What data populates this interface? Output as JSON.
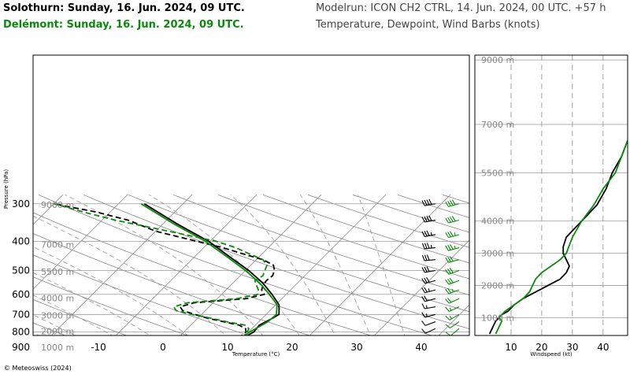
{
  "header": {
    "station_1": "Solothurn: Sunday, 16. Jun. 2024, 09 UTC.",
    "station_2": "Delémont: Sunday, 16. Jun. 2024, 09 UTC.",
    "model_run": "Modelrun: ICON CH2 CTRL, 14. Jun. 2024, 00 UTC. +57 h",
    "description": "Temperature, Dewpoint, Wind Barbs (knots)"
  },
  "footer": {
    "credit": "© Meteoswiss (2024)"
  },
  "colors": {
    "station_1": "#000000",
    "station_2": "#0a8a0a",
    "grid": "#888888",
    "isobar": "#999999"
  },
  "chart_data": [
    {
      "type": "line",
      "subtype": "skew-T log-p",
      "xlabel": "Temperature (°C)",
      "ylabel": "Pressure (hPa)",
      "x_ticks": [
        -10,
        0,
        10,
        20,
        30,
        40
      ],
      "y_ticks": [
        300,
        400,
        500,
        600,
        700,
        800,
        900
      ],
      "height_labels": [
        {
          "p": 302,
          "label": "9000 m"
        },
        {
          "p": 410,
          "label": "7000 m"
        },
        {
          "p": 505,
          "label": "5500 m"
        },
        {
          "p": 617,
          "label": "4000 m"
        },
        {
          "p": 705,
          "label": "3000 m"
        },
        {
          "p": 795,
          "label": "2000 m"
        },
        {
          "p": 900,
          "label": "1000 m"
        }
      ],
      "grid": true,
      "series": [
        {
          "name": "Solothurn temperature",
          "station": "station_1",
          "variable": "temperature",
          "style": "solid",
          "points": [
            [
              940,
              18.2
            ],
            [
              925,
              16
            ],
            [
              900,
              13
            ],
            [
              870,
              11
            ],
            [
              850,
              10.3
            ],
            [
              820,
              10.4
            ],
            [
              800,
              10.8
            ],
            [
              760,
              10.6
            ],
            [
              720,
              11.6
            ],
            [
              700,
              12
            ],
            [
              650,
              10.5
            ],
            [
              600,
              7.8
            ],
            [
              550,
              4.6
            ],
            [
              500,
              0.5
            ],
            [
              450,
              -4.6
            ],
            [
              400,
              -10.2
            ],
            [
              350,
              -17.8
            ],
            [
              300,
              -26
            ]
          ]
        },
        {
          "name": "Solothurn dewpoint",
          "station": "station_1",
          "variable": "dewpoint",
          "style": "dashed",
          "points": [
            [
              940,
              10.6
            ],
            [
              925,
              10.6
            ],
            [
              900,
              10
            ],
            [
              870,
              9.4
            ],
            [
              850,
              9.3
            ],
            [
              820,
              9.5
            ],
            [
              800,
              9.6
            ],
            [
              780,
              9
            ],
            [
              760,
              7.5
            ],
            [
              740,
              4.5
            ],
            [
              720,
              1.5
            ],
            [
              700,
              -1
            ],
            [
              680,
              -3.5
            ],
            [
              660,
              -4.5
            ],
            [
              640,
              -3
            ],
            [
              620,
              4.5
            ],
            [
              600,
              6.6
            ],
            [
              580,
              5.5
            ],
            [
              560,
              5
            ],
            [
              540,
              4.8
            ],
            [
              520,
              5
            ],
            [
              500,
              4.5
            ],
            [
              480,
              3.5
            ],
            [
              460,
              1
            ],
            [
              440,
              -3
            ],
            [
              420,
              -7
            ],
            [
              400,
              -12
            ],
            [
              370,
              -20
            ],
            [
              340,
              -26
            ],
            [
              320,
              -32
            ],
            [
              300,
              -40
            ]
          ]
        },
        {
          "name": "Delémont temperature",
          "station": "station_2",
          "variable": "temperature",
          "style": "solid",
          "points": [
            [
              940,
              17.6
            ],
            [
              925,
              15.5
            ],
            [
              900,
              12.2
            ],
            [
              870,
              10.5
            ],
            [
              850,
              9.8
            ],
            [
              820,
              9.9
            ],
            [
              800,
              10.2
            ],
            [
              770,
              10.8
            ],
            [
              740,
              11.4
            ],
            [
              700,
              11.6
            ],
            [
              650,
              10.2
            ],
            [
              600,
              7.4
            ],
            [
              550,
              4.1
            ],
            [
              500,
              0
            ],
            [
              450,
              -5
            ],
            [
              400,
              -10.7
            ],
            [
              350,
              -18.3
            ],
            [
              300,
              -26.5
            ]
          ]
        },
        {
          "name": "Delémont dewpoint",
          "station": "station_2",
          "variable": "dewpoint",
          "style": "dashed",
          "points": [
            [
              940,
              10.8
            ],
            [
              925,
              10.8
            ],
            [
              900,
              10.4
            ],
            [
              870,
              10
            ],
            [
              850,
              9.8
            ],
            [
              820,
              10
            ],
            [
              800,
              9.8
            ],
            [
              780,
              9.5
            ],
            [
              760,
              8.5
            ],
            [
              740,
              5
            ],
            [
              720,
              2
            ],
            [
              700,
              -1.5
            ],
            [
              680,
              -4.5
            ],
            [
              660,
              -5.5
            ],
            [
              640,
              -4
            ],
            [
              620,
              3
            ],
            [
              600,
              5.6
            ],
            [
              580,
              5
            ],
            [
              560,
              4
            ],
            [
              540,
              3
            ],
            [
              520,
              3.5
            ],
            [
              500,
              3
            ],
            [
              480,
              2.5
            ],
            [
              460,
              1
            ],
            [
              440,
              -2
            ],
            [
              420,
              -5
            ],
            [
              400,
              -9
            ],
            [
              370,
              -18
            ],
            [
              340,
              -28
            ],
            [
              320,
              -34
            ],
            [
              300,
              -40
            ]
          ]
        }
      ]
    },
    {
      "type": "line",
      "subtype": "wind speed profile",
      "xlabel": "Windspeed (kt)",
      "x_ticks": [
        10,
        20,
        30,
        40
      ],
      "xlim": [
        0,
        48
      ],
      "height_labels": [
        "9000 m",
        "7000 m",
        "5500 m",
        "4000 m",
        "3000 m",
        "2000 m",
        "1000 m"
      ],
      "height_values_m": [
        9000,
        7000,
        5500,
        4000,
        3000,
        2000,
        1000
      ],
      "ylim_m": [
        450,
        9150
      ],
      "series": [
        {
          "name": "Solothurn windspeed",
          "station": "station_1",
          "points": [
            [
              500,
              3
            ],
            [
              700,
              4
            ],
            [
              900,
              5
            ],
            [
              1000,
              6
            ],
            [
              1100,
              7
            ],
            [
              1200,
              9
            ],
            [
              1400,
              11
            ],
            [
              1600,
              14
            ],
            [
              1800,
              18
            ],
            [
              2000,
              22
            ],
            [
              2200,
              26
            ],
            [
              2400,
              28
            ],
            [
              2600,
              29
            ],
            [
              2800,
              28
            ],
            [
              3000,
              27
            ],
            [
              3200,
              27
            ],
            [
              3500,
              28
            ],
            [
              3800,
              31
            ],
            [
              4000,
              33
            ],
            [
              4500,
              38
            ],
            [
              5000,
              41
            ],
            [
              5500,
              43
            ],
            [
              6000,
              46
            ],
            [
              6500,
              48
            ]
          ]
        },
        {
          "name": "Delémont windspeed",
          "station": "station_2",
          "points": [
            [
              500,
              5
            ],
            [
              700,
              6
            ],
            [
              900,
              7
            ],
            [
              1000,
              6
            ],
            [
              1100,
              7
            ],
            [
              1200,
              8
            ],
            [
              1400,
              11
            ],
            [
              1600,
              14
            ],
            [
              1800,
              16
            ],
            [
              2000,
              17
            ],
            [
              2200,
              18
            ],
            [
              2400,
              20
            ],
            [
              2600,
              23
            ],
            [
              2800,
              26
            ],
            [
              3000,
              28
            ],
            [
              3500,
              30
            ],
            [
              4000,
              33
            ],
            [
              4500,
              37
            ],
            [
              5000,
              40
            ],
            [
              5500,
              44
            ],
            [
              6000,
              46
            ],
            [
              6500,
              48
            ]
          ]
        }
      ]
    },
    {
      "type": "wind-barbs",
      "units": "knots",
      "series": [
        {
          "station": "station_1",
          "column": "left",
          "barbs": [
            [
              300,
              40,
              260
            ],
            [
              340,
              40,
              260
            ],
            [
              380,
              35,
              260
            ],
            [
              420,
              35,
              265
            ],
            [
              460,
              30,
              265
            ],
            [
              500,
              30,
              260
            ],
            [
              540,
              30,
              255
            ],
            [
              580,
              25,
              255
            ],
            [
              620,
              20,
              255
            ],
            [
              660,
              15,
              260
            ],
            [
              700,
              15,
              255
            ],
            [
              740,
              10,
              250
            ],
            [
              780,
              10,
              245
            ],
            [
              820,
              10,
              240
            ],
            [
              860,
              10,
              235
            ],
            [
              900,
              10,
              230
            ],
            [
              930,
              5,
              230
            ]
          ]
        },
        {
          "station": "station_2",
          "column": "right",
          "barbs": [
            [
              300,
              40,
              255
            ],
            [
              340,
              40,
              255
            ],
            [
              380,
              35,
              255
            ],
            [
              420,
              35,
              255
            ],
            [
              460,
              30,
              255
            ],
            [
              500,
              30,
              250
            ],
            [
              540,
              30,
              250
            ],
            [
              580,
              25,
              250
            ],
            [
              620,
              20,
              245
            ],
            [
              660,
              15,
              245
            ],
            [
              700,
              15,
              240
            ],
            [
              740,
              10,
              235
            ],
            [
              780,
              10,
              230
            ],
            [
              820,
              10,
              225
            ],
            [
              860,
              10,
              220
            ],
            [
              900,
              5,
              215
            ],
            [
              930,
              5,
              215
            ]
          ]
        }
      ]
    }
  ]
}
